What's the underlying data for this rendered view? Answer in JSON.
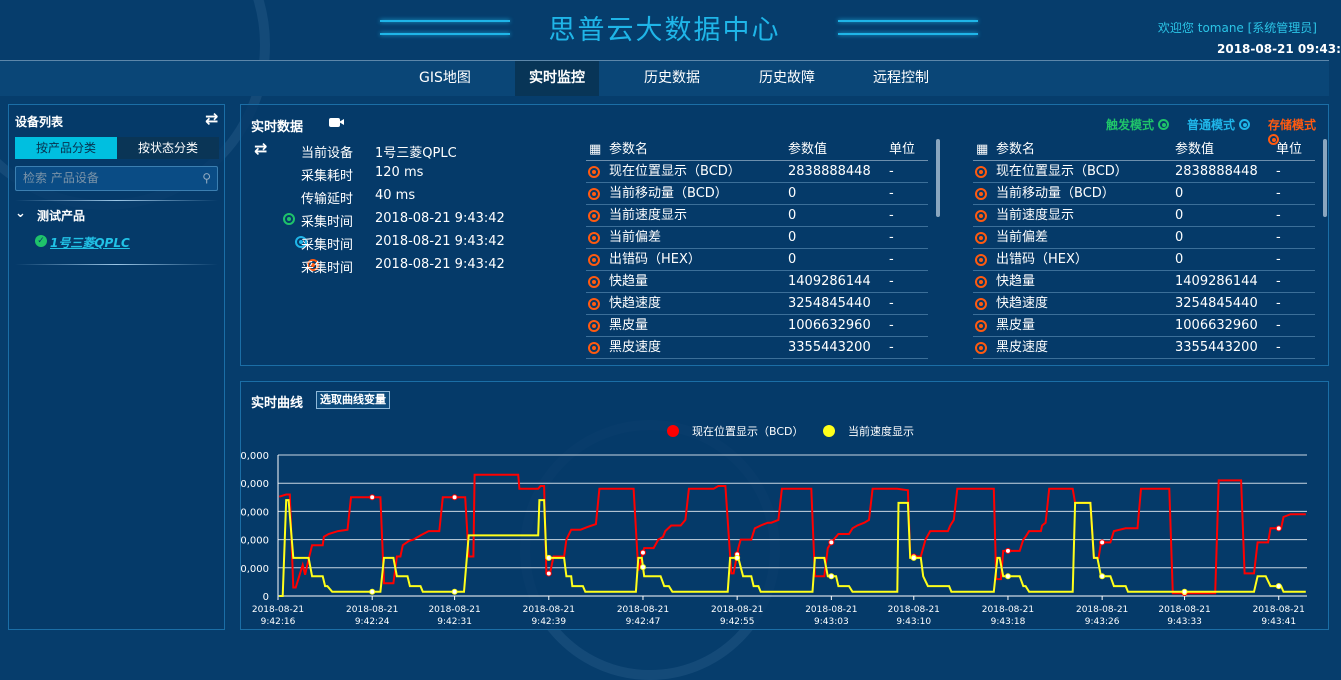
{
  "header": {
    "title": "思普云大数据中心",
    "welcome": "欢迎您  tomane [系统管理员]",
    "datetime": "2018-08-21 09:43:",
    "accent": "#1fb5e8"
  },
  "nav": [
    {
      "label": "GIS地图"
    },
    {
      "label": "实时监控",
      "active": true
    },
    {
      "label": "历史数据"
    },
    {
      "label": "历史故障"
    },
    {
      "label": "远程控制"
    }
  ],
  "sidebar": {
    "title": "设备列表",
    "tabs": [
      {
        "label": "按产品分类",
        "active": true
      },
      {
        "label": "按状态分类"
      }
    ],
    "search_placeholder": "检索 产品设备",
    "group": "测试产品",
    "device": "1号三菱QPLC",
    "icons": [
      "swap-icon",
      "search-icon",
      "chevron-down-icon",
      "check-circle-icon"
    ]
  },
  "realtime": {
    "title": "实时数据",
    "modes": [
      {
        "label": "触发模式",
        "color": "#1fc36a"
      },
      {
        "label": "普通模式",
        "color": "#1fb5e8"
      },
      {
        "label": "存储模式",
        "color": "#ff5a10"
      }
    ],
    "info": [
      {
        "label": "当前设备",
        "value": "1号三菱QPLC"
      },
      {
        "label": "采集耗时",
        "value": "120 ms"
      },
      {
        "label": "传输延时",
        "value": "40 ms"
      },
      {
        "label": "采集时间",
        "value": "2018-08-21 9:43:42",
        "color": "#1fc36a"
      },
      {
        "label": "采集时间",
        "value": "2018-08-21 9:43:42",
        "color": "#1fb5e8"
      },
      {
        "label": "采集时间",
        "value": "2018-08-21 9:43:42",
        "color": "#ff5a10"
      }
    ],
    "columns": [
      "参数名",
      "参数值",
      "单位"
    ],
    "tables": [
      [
        [
          "现在位置显示（BCD）",
          "2838888448",
          "-"
        ],
        [
          "当前移动量（BCD）",
          "0",
          "-"
        ],
        [
          "当前速度显示",
          "0",
          "-"
        ],
        [
          "当前偏差",
          "0",
          "-"
        ],
        [
          "出错码（HEX）",
          "0",
          "-"
        ],
        [
          "快趋量",
          "1409286144",
          "-"
        ],
        [
          "快趋速度",
          "3254845440",
          "-"
        ],
        [
          "黑皮量",
          "1006632960",
          "-"
        ],
        [
          "黑皮速度",
          "3355443200",
          "-"
        ]
      ],
      [
        [
          "现在位置显示（BCD）",
          "2838888448",
          "-"
        ],
        [
          "当前移动量（BCD）",
          "0",
          "-"
        ],
        [
          "当前速度显示",
          "0",
          "-"
        ],
        [
          "当前偏差",
          "0",
          "-"
        ],
        [
          "出错码（HEX）",
          "0",
          "-"
        ],
        [
          "快趋量",
          "1409286144",
          "-"
        ],
        [
          "快趋速度",
          "3254845440",
          "-"
        ],
        [
          "黑皮量",
          "1006632960",
          "-"
        ],
        [
          "黑皮速度",
          "3355443200",
          "-"
        ]
      ]
    ]
  },
  "curve": {
    "title": "实时曲线",
    "pick_button": "选取曲线变量"
  },
  "chart_data": {
    "type": "line",
    "legend_position": "top-center",
    "grid": true,
    "xlim": [
      "9:42:16",
      "9:43:43.4"
    ],
    "ylim": [
      0,
      5
    ],
    "yticks": [
      0,
      1,
      2,
      3,
      4,
      5
    ],
    "ytick_labels": [
      "0",
      "0,000",
      "0,000",
      "0,000",
      "0,000",
      "0,000"
    ],
    "xticks": [
      "9:42:16",
      "9:42:24",
      "9:42:31",
      "9:42:39",
      "9:42:47",
      "9:42:55",
      "9:43:03",
      "9:43:10",
      "9:43:18",
      "9:43:26",
      "9:43:33",
      "9:43:41"
    ],
    "xtick_date": "2018-08-21",
    "series": [
      {
        "name": "现在位置显示（BCD）",
        "color": "#ff0000",
        "points": [
          [
            "9:42:16.1",
            3.52
          ],
          [
            "9:42:16.7",
            3.6
          ],
          [
            "9:42:17.0",
            3.6
          ],
          [
            "9:42:17.3",
            0.3
          ],
          [
            "9:42:17.5",
            0.3
          ],
          [
            "9:42:18.1",
            1.1
          ],
          [
            "9:42:18.3",
            0.75
          ],
          [
            "9:42:18.6",
            1.3
          ],
          [
            "9:42:18.9",
            1.8
          ],
          [
            "9:42:19.8",
            1.8
          ],
          [
            "9:42:19.9",
            2.1
          ],
          [
            "9:42:20.3",
            2.2
          ],
          [
            "9:42:21.1",
            2.3
          ],
          [
            "9:42:21.9",
            2.35
          ],
          [
            "9:42:22.2",
            3.5
          ],
          [
            "9:42:24.7",
            3.5
          ],
          [
            "9:42:25.0",
            0.45
          ],
          [
            "9:42:25.8",
            0.45
          ],
          [
            "9:42:26.1",
            1.4
          ],
          [
            "9:42:26.4",
            1.4
          ],
          [
            "9:42:26.6",
            1.8
          ],
          [
            "9:42:27.1",
            1.95
          ],
          [
            "9:42:27.5",
            2.0
          ],
          [
            "9:42:28.1",
            2.15
          ],
          [
            "9:42:28.8",
            2.3
          ],
          [
            "9:42:29.7",
            2.3
          ],
          [
            "9:42:30.0",
            3.5
          ],
          [
            "9:42:31.9",
            3.5
          ],
          [
            "9:42:32.2",
            1.4
          ],
          [
            "9:42:32.6",
            1.4
          ],
          [
            "9:42:32.7",
            4.3
          ],
          [
            "9:42:36.4",
            4.3
          ],
          [
            "9:42:36.5",
            3.8
          ],
          [
            "9:42:38.1",
            3.8
          ],
          [
            "9:42:38.3",
            3.9
          ],
          [
            "9:42:38.6",
            3.9
          ],
          [
            "9:42:38.8",
            0.8
          ],
          [
            "9:42:39.1",
            0.8
          ],
          [
            "9:42:39.4",
            1.4
          ],
          [
            "9:42:40.3",
            1.4
          ],
          [
            "9:42:40.5",
            2.0
          ],
          [
            "9:42:40.9",
            2.35
          ],
          [
            "9:42:41.7",
            2.35
          ],
          [
            "9:42:42.3",
            2.45
          ],
          [
            "9:42:43.0",
            2.55
          ],
          [
            "9:42:43.3",
            3.8
          ],
          [
            "9:42:46.2",
            3.8
          ],
          [
            "9:42:46.6",
            0.9
          ],
          [
            "9:42:47.1",
            1.7
          ],
          [
            "9:42:47.9",
            1.7
          ],
          [
            "9:42:48.3",
            2.0
          ],
          [
            "9:42:48.7",
            2.1
          ],
          [
            "9:42:48.9",
            2.3
          ],
          [
            "9:42:49.4",
            2.5
          ],
          [
            "9:42:50.2",
            2.5
          ],
          [
            "9:42:50.6",
            2.7
          ],
          [
            "9:42:50.9",
            3.8
          ],
          [
            "9:42:53.0",
            3.8
          ],
          [
            "9:42:53.4",
            3.9
          ],
          [
            "9:42:54.0",
            3.9
          ],
          [
            "9:42:54.5",
            0.8
          ],
          [
            "9:42:54.7",
            0.8
          ],
          [
            "9:42:55.1",
            1.7
          ],
          [
            "9:42:55.3",
            2.0
          ],
          [
            "9:42:56.2",
            2.0
          ],
          [
            "9:42:56.5",
            2.4
          ],
          [
            "9:42:57.0",
            2.5
          ],
          [
            "9:42:57.6",
            2.6
          ],
          [
            "9:42:57.9",
            2.6
          ],
          [
            "9:42:58.5",
            2.7
          ],
          [
            "9:42:58.8",
            3.8
          ],
          [
            "9:43:01.3",
            3.8
          ],
          [
            "9:43:01.6",
            0.7
          ],
          [
            "9:43:02.4",
            0.7
          ],
          [
            "9:43:02.7",
            1.7
          ],
          [
            "9:43:03.0",
            1.9
          ],
          [
            "9:43:03.6",
            2.2
          ],
          [
            "9:43:04.5",
            2.2
          ],
          [
            "9:43:04.8",
            2.4
          ],
          [
            "9:43:05.2",
            2.5
          ],
          [
            "9:43:05.8",
            2.6
          ],
          [
            "9:43:06.2",
            2.7
          ],
          [
            "9:43:06.5",
            3.8
          ],
          [
            "9:43:08.6",
            3.8
          ],
          [
            "9:43:09.5",
            3.75
          ],
          [
            "9:43:09.7",
            1.4
          ],
          [
            "9:43:10.6",
            1.4
          ],
          [
            "9:43:11.0",
            2.0
          ],
          [
            "9:43:11.4",
            2.3
          ],
          [
            "9:43:12.9",
            2.3
          ],
          [
            "9:43:13.1",
            2.5
          ],
          [
            "9:43:13.4",
            2.7
          ],
          [
            "9:43:13.7",
            3.8
          ],
          [
            "9:43:16.8",
            3.8
          ],
          [
            "9:43:17.0",
            0.6
          ],
          [
            "9:43:17.4",
            0.6
          ],
          [
            "9:43:17.6",
            1.6
          ],
          [
            "9:43:19.0",
            1.6
          ],
          [
            "9:43:19.3",
            2.0
          ],
          [
            "9:43:19.5",
            2.1
          ],
          [
            "9:43:19.8",
            2.3
          ],
          [
            "9:43:20.8",
            2.3
          ],
          [
            "9:43:20.9",
            2.5
          ],
          [
            "9:43:21.2",
            2.6
          ],
          [
            "9:43:21.5",
            3.8
          ],
          [
            "9:43:23.5",
            3.8
          ],
          [
            "9:43:23.7",
            3.3
          ],
          [
            "9:43:25.0",
            3.3
          ],
          [
            "9:43:25.3",
            1.35
          ],
          [
            "9:43:25.7",
            1.35
          ],
          [
            "9:43:25.9",
            1.9
          ],
          [
            "9:43:26.7",
            1.9
          ],
          [
            "9:43:27.0",
            2.3
          ],
          [
            "9:43:28.0",
            2.4
          ],
          [
            "9:43:29.0",
            2.4
          ],
          [
            "9:43:29.3",
            3.8
          ],
          [
            "9:43:31.7",
            3.8
          ],
          [
            "9:43:32.0",
            0.1
          ],
          [
            "9:43:35.6",
            0.1
          ],
          [
            "9:43:35.9",
            4.1
          ],
          [
            "9:43:37.8",
            4.1
          ],
          [
            "9:43:38.1",
            0.8
          ],
          [
            "9:43:38.9",
            0.8
          ],
          [
            "9:43:39.2",
            1.9
          ],
          [
            "9:43:40.1",
            1.9
          ],
          [
            "9:43:40.3",
            2.4
          ],
          [
            "9:43:41.2",
            2.4
          ],
          [
            "9:43:41.4",
            2.8
          ],
          [
            "9:43:42.0",
            2.9
          ],
          [
            "9:43:43.3",
            2.9
          ]
        ]
      },
      {
        "name": "当前速度显示",
        "color": "#ffff1a",
        "points": [
          [
            "9:42:16.1",
            0
          ],
          [
            "9:42:16.4",
            0
          ],
          [
            "9:42:16.7",
            3.4
          ],
          [
            "9:42:16.9",
            3.4
          ],
          [
            "9:42:17.3",
            1.35
          ],
          [
            "9:42:18.6",
            1.35
          ],
          [
            "9:42:18.9",
            0.7
          ],
          [
            "9:42:19.8",
            0.7
          ],
          [
            "9:42:20.0",
            0.35
          ],
          [
            "9:42:20.2",
            0.35
          ],
          [
            "9:42:20.6",
            0.15
          ],
          [
            "9:42:24.7",
            0.15
          ],
          [
            "9:42:25.0",
            1.35
          ],
          [
            "9:42:25.8",
            1.35
          ],
          [
            "9:42:26.1",
            0.7
          ],
          [
            "9:42:27.0",
            0.7
          ],
          [
            "9:42:27.2",
            0.35
          ],
          [
            "9:42:28.1",
            0.35
          ],
          [
            "9:42:28.3",
            0.15
          ],
          [
            "9:42:31.8",
            0.15
          ],
          [
            "9:42:32.2",
            2.15
          ],
          [
            "9:42:38.1",
            2.15
          ],
          [
            "9:42:38.2",
            3.4
          ],
          [
            "9:42:38.6",
            3.4
          ],
          [
            "9:42:38.8",
            1.35
          ],
          [
            "9:42:40.3",
            1.35
          ],
          [
            "9:42:40.5",
            0.7
          ],
          [
            "9:42:40.9",
            0.7
          ],
          [
            "9:42:41.0",
            0.35
          ],
          [
            "9:42:41.9",
            0.35
          ],
          [
            "9:42:42.1",
            0.15
          ],
          [
            "9:42:46.4",
            0.15
          ],
          [
            "9:42:46.6",
            1.35
          ],
          [
            "9:42:46.9",
            1.35
          ],
          [
            "9:42:47.1",
            0.7
          ],
          [
            "9:42:48.5",
            0.7
          ],
          [
            "9:42:48.8",
            0.35
          ],
          [
            "9:42:49.2",
            0.35
          ],
          [
            "9:42:49.5",
            0.15
          ],
          [
            "9:42:54.2",
            0.15
          ],
          [
            "9:42:54.4",
            1.35
          ],
          [
            "9:42:55.1",
            1.35
          ],
          [
            "9:42:55.5",
            0.7
          ],
          [
            "9:42:56.2",
            0.7
          ],
          [
            "9:42:56.4",
            0.35
          ],
          [
            "9:42:56.8",
            0.35
          ],
          [
            "9:42:57.0",
            0.15
          ],
          [
            "9:43:01.4",
            0.15
          ],
          [
            "9:43:01.6",
            1.35
          ],
          [
            "9:43:02.4",
            1.35
          ],
          [
            "9:43:02.7",
            0.7
          ],
          [
            "9:43:03.4",
            0.7
          ],
          [
            "9:43:03.6",
            0.35
          ],
          [
            "9:43:04.5",
            0.35
          ],
          [
            "9:43:04.8",
            0.15
          ],
          [
            "9:43:08.6",
            0.15
          ],
          [
            "9:43:08.7",
            3.3
          ],
          [
            "9:43:09.5",
            3.3
          ],
          [
            "9:43:09.7",
            1.35
          ],
          [
            "9:43:10.6",
            1.35
          ],
          [
            "9:43:10.8",
            0.7
          ],
          [
            "9:43:11.2",
            0.35
          ],
          [
            "9:43:13.0",
            0.35
          ],
          [
            "9:43:13.2",
            0.15
          ],
          [
            "9:43:16.8",
            0.15
          ],
          [
            "9:43:17.1",
            1.35
          ],
          [
            "9:43:17.3",
            1.35
          ],
          [
            "9:43:17.6",
            0.7
          ],
          [
            "9:43:19.0",
            0.7
          ],
          [
            "9:43:19.3",
            0.35
          ],
          [
            "9:43:19.5",
            0.35
          ],
          [
            "9:43:19.8",
            0.15
          ],
          [
            "9:43:23.5",
            0.15
          ],
          [
            "9:43:23.7",
            3.3
          ],
          [
            "9:43:25.0",
            3.3
          ],
          [
            "9:43:25.3",
            1.35
          ],
          [
            "9:43:25.6",
            1.35
          ],
          [
            "9:43:25.9",
            0.7
          ],
          [
            "9:43:26.7",
            0.7
          ],
          [
            "9:43:27.0",
            0.35
          ],
          [
            "9:43:28.0",
            0.35
          ],
          [
            "9:43:28.2",
            0.15
          ],
          [
            "9:43:38.9",
            0.15
          ],
          [
            "9:43:39.2",
            0.7
          ],
          [
            "9:43:39.9",
            0.7
          ],
          [
            "9:43:40.3",
            0.35
          ],
          [
            "9:43:41.2",
            0.35
          ],
          [
            "9:43:41.4",
            0.15
          ],
          [
            "9:43:43.3",
            0.15
          ]
        ]
      }
    ]
  }
}
